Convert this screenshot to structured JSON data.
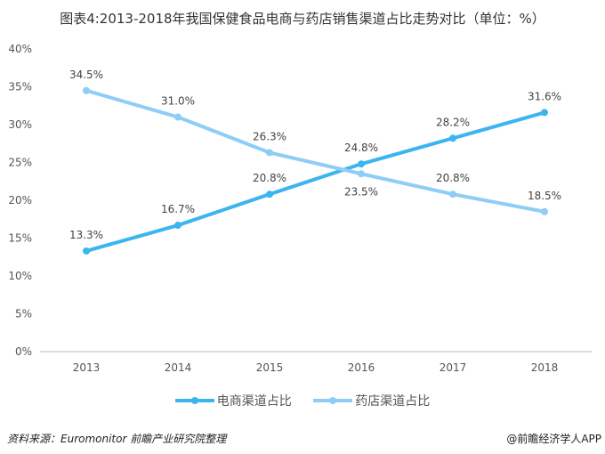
{
  "title": "图表4:2013-2018年我国保健食品电商与药店销售渠道占比走势对比（单位：%）",
  "source": "资料来源：Euromonitor  前瞻产业研究院整理",
  "credit": "@前瞻经济学人APP",
  "chart_data": {
    "type": "line",
    "title": "图表4:2013-2018年我国保健食品电商与药店销售渠道占比走势对比（单位：%）",
    "categories": [
      "2013",
      "2014",
      "2015",
      "2016",
      "2017",
      "2018"
    ],
    "ylim": [
      0,
      40
    ],
    "yticks": [
      "0%",
      "5%",
      "10%",
      "15%",
      "20%",
      "25%",
      "30%",
      "35%",
      "40%"
    ],
    "grid": false,
    "legend": "bottom",
    "series": [
      {
        "name": "电商渠道占比",
        "values": [
          13.3,
          16.7,
          20.8,
          24.8,
          28.2,
          31.6
        ],
        "labels": [
          "13.3%",
          "16.7%",
          "20.8%",
          "24.8%",
          "28.2%",
          "31.6%"
        ],
        "color": "#3cb4f0"
      },
      {
        "name": "药店渠道占比",
        "values": [
          34.5,
          31.0,
          26.3,
          23.5,
          20.8,
          18.5
        ],
        "labels": [
          "34.5%",
          "31.0%",
          "26.3%",
          "23.5%",
          "20.8%",
          "18.5%"
        ],
        "color": "#8ecdf6"
      }
    ]
  }
}
